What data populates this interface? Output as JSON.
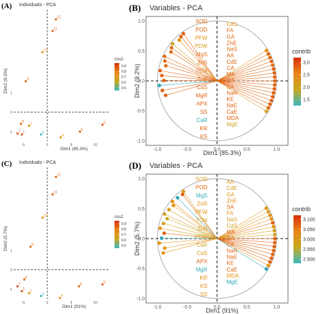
{
  "panels": [
    {
      "label": "(A)",
      "title": "Individuals - PCA",
      "xlabel": "Dim1 (85.3%)",
      "ylabel": "Dim2 (9.2%)",
      "legend_title": "cos2",
      "legend_ticks": [
        "0.9",
        "0.8",
        "0.7",
        "0.6",
        "0.5"
      ],
      "legend_tick_values": [
        0.9,
        0.8,
        0.7,
        0.6,
        0.5
      ],
      "legend_range": [
        0.45,
        0.95
      ],
      "legend_colors": [
        "#d62f0a",
        "#e8861a",
        "#c8a81f",
        "#3cb8c2"
      ],
      "xlim": [
        -7,
        13
      ],
      "ylim": [
        -1.5,
        5.3
      ],
      "xticks": [
        -5,
        0,
        5,
        10
      ],
      "yticks": [
        1,
        0,
        -1
      ],
      "points": [
        {
          "label": "12",
          "x": 1.8,
          "y": 4.8,
          "color": "#e0620f"
        },
        {
          "label": "11",
          "x": 1.1,
          "y": 4.2,
          "color": "#e0620f"
        },
        {
          "label": "10",
          "x": -1.0,
          "y": 3.1,
          "color": "#e39313"
        },
        {
          "label": "9",
          "x": -4.5,
          "y": 1.6,
          "color": "#e06a12"
        },
        {
          "label": "8",
          "x": -5.5,
          "y": -0.6,
          "color": "#e06a12"
        },
        {
          "label": "7",
          "x": -6.2,
          "y": -1.1,
          "color": "#d9521c"
        },
        {
          "label": "1",
          "x": -5.3,
          "y": -1.15,
          "color": "#d9521c"
        },
        {
          "label": "2",
          "x": -3.8,
          "y": -0.7,
          "color": "#e39313"
        },
        {
          "label": "3",
          "x": -1.3,
          "y": -1.15,
          "color": "#3cb8c2"
        },
        {
          "label": "4",
          "x": 2.8,
          "y": -1.3,
          "color": "#e39313"
        },
        {
          "label": "5",
          "x": 6.8,
          "y": -1.0,
          "color": "#e0620f"
        },
        {
          "label": "6",
          "x": 11.5,
          "y": -0.65,
          "color": "#e0620f"
        }
      ]
    },
    {
      "label": "(B)",
      "title": "Variables - PCA",
      "xlabel": "Dim1 (85.3%)",
      "ylabel": "Dim2 (9.2%)",
      "legend_title": "contrib",
      "legend_ticks": [
        "3.0",
        "2.5",
        "2.0",
        "1.5"
      ],
      "legend_tick_values": [
        3.0,
        2.5,
        2.0,
        1.5
      ],
      "legend_range": [
        1.25,
        3.2
      ],
      "legend_colors": [
        "#d62f0a",
        "#e8861a",
        "#c8a81f",
        "#3cb8c2"
      ],
      "xticks": [
        "-1.0",
        "-0.5",
        "0.0",
        "0.5",
        "1.0"
      ],
      "yticks": [
        "1.0",
        "0.5",
        "0.0",
        "-0.5",
        "-1.0"
      ],
      "left_labels": [
        {
          "text": "SOD",
          "color": "#e0620f"
        },
        {
          "text": "POD",
          "color": "#e0620f"
        },
        {
          "text": "PFW",
          "color": "#e39313"
        },
        {
          "text": "PDW",
          "color": "#d4a01f"
        },
        {
          "text": "MgS",
          "color": "#e06a12"
        },
        {
          "text": "ZnS",
          "color": "#e06a12"
        },
        {
          "text": "TChl",
          "color": "#e06a12"
        },
        {
          "text": "ZnR",
          "color": "#e06a12"
        },
        {
          "text": "CaS",
          "color": "#e06a12"
        },
        {
          "text": "MgR",
          "color": "#e0620f"
        },
        {
          "text": "APX",
          "color": "#e0620f"
        },
        {
          "text": "SS",
          "color": "#e0620f"
        },
        {
          "text": "CaR",
          "color": "#2fa6b8"
        },
        {
          "text": "KR",
          "color": "#e0620f"
        },
        {
          "text": "KS",
          "color": "#e0620f"
        }
      ],
      "right_labels": [
        {
          "text": "CdS",
          "color": "#e39313"
        },
        {
          "text": "FA",
          "color": "#e06a12"
        },
        {
          "text": "GA",
          "color": "#e06a12"
        },
        {
          "text": "ZnE",
          "color": "#e0620f"
        },
        {
          "text": "NaS",
          "color": "#e06a12"
        },
        {
          "text": "AA",
          "color": "#e0620f"
        },
        {
          "text": "CdE",
          "color": "#e0620f"
        },
        {
          "text": "CA",
          "color": "#e0620f"
        },
        {
          "text": "MA",
          "color": "#e0620f"
        },
        {
          "text": "OA",
          "color": "#e0620f"
        },
        {
          "text": "SA",
          "color": "#e0620f"
        },
        {
          "text": "NaR",
          "color": "#e0620f"
        },
        {
          "text": "KE",
          "color": "#e0620f"
        },
        {
          "text": "NaE",
          "color": "#e0620f"
        },
        {
          "text": "CaE",
          "color": "#e0620f"
        },
        {
          "text": "MDA",
          "color": "#e06a12"
        },
        {
          "text": "MgE",
          "color": "#d4a01f"
        }
      ]
    },
    {
      "label": "(C)",
      "title": "Individuals - PCA",
      "xlabel": "Dim1 (91%)",
      "ylabel": "Dim2 (5.7%)",
      "legend_title": "cos2",
      "legend_ticks": [
        "0.9",
        "0.8",
        "0.7",
        "0.6",
        "0.5"
      ],
      "legend_tick_values": [
        0.9,
        0.8,
        0.7,
        0.6,
        0.5
      ],
      "legend_range": [
        0.45,
        0.95
      ],
      "legend_colors": [
        "#d62f0a",
        "#e8861a",
        "#c8a81f",
        "#3cb8c2"
      ],
      "xlim": [
        -7,
        13
      ],
      "ylim": [
        -1.5,
        5.3
      ],
      "xticks": [
        -5,
        0,
        5,
        10
      ],
      "yticks": [
        1,
        0,
        -1
      ],
      "points": [
        {
          "label": "12",
          "x": 1.8,
          "y": 4.8,
          "color": "#e0620f"
        },
        {
          "label": "11",
          "x": 1.1,
          "y": 3.9,
          "color": "#e0620f"
        },
        {
          "label": "10",
          "x": -1.0,
          "y": 2.7,
          "color": "#e39313"
        },
        {
          "label": "9",
          "x": -3.5,
          "y": 1.2,
          "color": "#e06a12"
        },
        {
          "label": "8",
          "x": -4.8,
          "y": -0.5,
          "color": "#e06a12"
        },
        {
          "label": "7",
          "x": -6.2,
          "y": -0.85,
          "color": "#d9521c"
        },
        {
          "label": "1",
          "x": -5.3,
          "y": -1.1,
          "color": "#d9521c"
        },
        {
          "label": "2",
          "x": -3.8,
          "y": -1.2,
          "color": "#e39313"
        },
        {
          "label": "3",
          "x": -1.3,
          "y": -1.35,
          "color": "#3cb8c2"
        },
        {
          "label": "4",
          "x": 2.6,
          "y": -1.45,
          "color": "#e39313"
        },
        {
          "label": "5",
          "x": 6.6,
          "y": -0.85,
          "color": "#e0620f"
        },
        {
          "label": "6",
          "x": 11.5,
          "y": -0.75,
          "color": "#e0620f"
        }
      ]
    },
    {
      "label": "(D)",
      "title": "Variables - PCA",
      "xlabel": "Dim1 (91%)",
      "ylabel": "Dim2 (5.7%)",
      "legend_title": "contrib",
      "legend_ticks": [
        "3.100",
        "3.050",
        "3.000",
        "2.950",
        "2.900"
      ],
      "legend_tick_values": [
        3.1,
        3.05,
        3.0,
        2.95,
        2.9
      ],
      "legend_range": [
        2.88,
        3.12
      ],
      "legend_colors": [
        "#d62f0a",
        "#e8861a",
        "#c8a81f",
        "#3cb8c2"
      ],
      "xticks": [
        "-1.0",
        "-0.5",
        "0.0",
        "0.5",
        "1.0"
      ],
      "yticks": [
        "1.0",
        "0.5",
        "0.0",
        "-0.5",
        "-1.0"
      ],
      "left_labels": [
        {
          "text": "SOD",
          "color": "#d4a01f"
        },
        {
          "text": "POD",
          "color": "#e0620f"
        },
        {
          "text": "MgS",
          "color": "#2fa6b8"
        },
        {
          "text": "ZnR",
          "color": "#e39313"
        },
        {
          "text": "PFW",
          "color": "#e39313"
        },
        {
          "text": "TChl",
          "color": "#d4a01f"
        },
        {
          "text": "ZnS",
          "color": "#d4a01f"
        },
        {
          "text": "PDW",
          "color": "#c8a81f"
        },
        {
          "text": "CaR",
          "color": "#d4a01f"
        },
        {
          "text": "CaS",
          "color": "#e39313"
        },
        {
          "text": "APX",
          "color": "#e0620f"
        },
        {
          "text": "MgR",
          "color": "#2fa6b8"
        },
        {
          "text": "KR",
          "color": "#e39313"
        },
        {
          "text": "KS",
          "color": "#e39313"
        },
        {
          "text": "SS",
          "color": "#e39313"
        }
      ],
      "right_labels": [
        {
          "text": "AA",
          "color": "#e39313"
        },
        {
          "text": "CdE",
          "color": "#d4a01f"
        },
        {
          "text": "GA",
          "color": "#e39313"
        },
        {
          "text": "ZnE",
          "color": "#e39313"
        },
        {
          "text": "SA",
          "color": "#e0620f"
        },
        {
          "text": "FA",
          "color": "#e39313"
        },
        {
          "text": "NaS",
          "color": "#d4a01f"
        },
        {
          "text": "CdS",
          "color": "#d4a01f"
        },
        {
          "text": "MA",
          "color": "#e0620f"
        },
        {
          "text": "OA",
          "color": "#e0620f"
        },
        {
          "text": "CA",
          "color": "#e0620f"
        },
        {
          "text": "NaR",
          "color": "#e0620f"
        },
        {
          "text": "NaE",
          "color": "#e0620f"
        },
        {
          "text": "KE",
          "color": "#e0620f"
        },
        {
          "text": "CaE",
          "color": "#e0620f"
        },
        {
          "text": "MDA",
          "color": "#e39313"
        },
        {
          "text": "MgE",
          "color": "#2fa6b8"
        }
      ]
    }
  ],
  "chart_data": [
    {
      "type": "scatter",
      "title": "Individuals - PCA",
      "xlabel": "Dim1 (85.3%)",
      "ylabel": "Dim2 (9.2%)",
      "legend": "cos2",
      "x": [
        1.8,
        1.1,
        -1.0,
        -4.5,
        -5.5,
        -6.2,
        -5.3,
        -3.8,
        -1.3,
        2.8,
        6.8,
        11.5
      ],
      "y": [
        4.8,
        4.2,
        3.1,
        1.6,
        -0.6,
        -1.1,
        -1.15,
        -0.7,
        -1.15,
        -1.3,
        -1.0,
        -0.65
      ],
      "point_labels": [
        "12",
        "11",
        "10",
        "9",
        "8",
        "7",
        "1",
        "2",
        "3",
        "4",
        "5",
        "6"
      ],
      "xticks": [
        -5,
        0,
        5,
        10
      ],
      "yticks": [
        -1,
        0,
        1
      ]
    },
    {
      "type": "scatter",
      "title": "Variables - PCA",
      "xlabel": "Dim1 (85.3%)",
      "ylabel": "Dim2 (9.2%)",
      "legend": "contrib",
      "xlim": [
        -1,
        1
      ],
      "ylim": [
        -1,
        1
      ],
      "note_visible": "correlation circle with variable arrows"
    },
    {
      "type": "scatter",
      "title": "Individuals - PCA",
      "xlabel": "Dim1 (91%)",
      "ylabel": "Dim2 (5.7%)",
      "legend": "cos2",
      "x": [
        1.8,
        1.1,
        -1.0,
        -3.5,
        -4.8,
        -6.2,
        -5.3,
        -3.8,
        -1.3,
        2.6,
        6.6,
        11.5
      ],
      "y": [
        4.8,
        3.9,
        2.7,
        1.2,
        -0.5,
        -0.85,
        -1.1,
        -1.2,
        -1.35,
        -1.45,
        -0.85,
        -0.75
      ],
      "point_labels": [
        "12",
        "11",
        "10",
        "9",
        "8",
        "7",
        "1",
        "2",
        "3",
        "4",
        "5",
        "6"
      ],
      "xticks": [
        -5,
        0,
        5,
        10
      ],
      "yticks": [
        -1,
        0,
        1
      ]
    },
    {
      "type": "scatter",
      "title": "Variables - PCA",
      "xlabel": "Dim1 (91%)",
      "ylabel": "Dim2 (5.7%)",
      "legend": "contrib",
      "xlim": [
        -1,
        1
      ],
      "ylim": [
        -1,
        1
      ]
    }
  ]
}
